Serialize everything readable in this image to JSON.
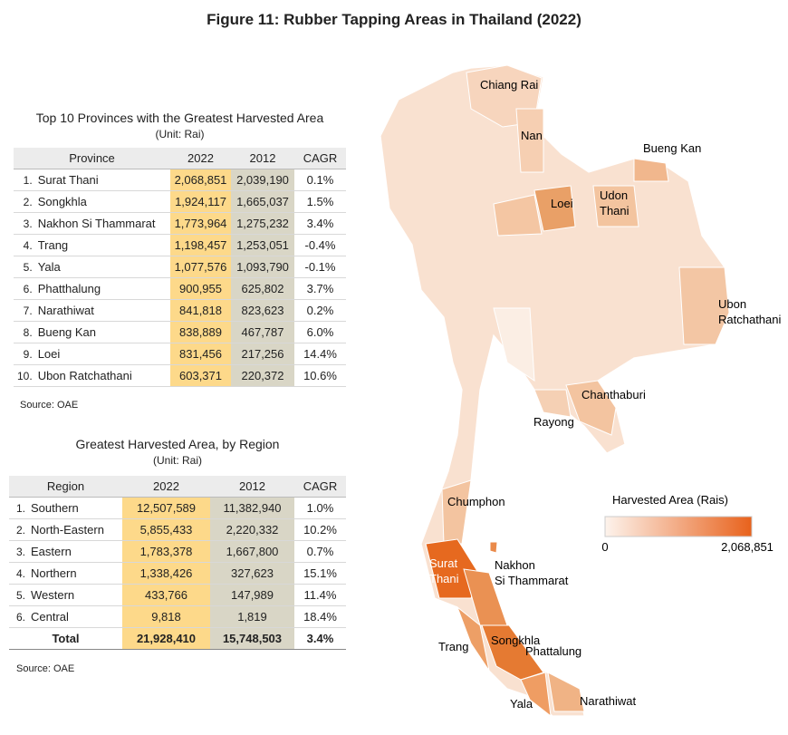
{
  "title": "Figure 11: Rubber Tapping Areas in Thailand (2022)",
  "province_table": {
    "title": "Top 10 Provinces with the Greatest Harvested Area",
    "unit": "(Unit: Rai)",
    "header": [
      "Province",
      "2022",
      "2012",
      "CAGR"
    ],
    "rows": [
      [
        "1.",
        "Surat Thani",
        "2,068,851",
        "2,039,190",
        "0.1%"
      ],
      [
        "2.",
        "Songkhla",
        "1,924,117",
        "1,665,037",
        "1.5%"
      ],
      [
        "3.",
        "Nakhon Si Thammarat",
        "1,773,964",
        "1,275,232",
        "3.4%"
      ],
      [
        "4.",
        "Trang",
        "1,198,457",
        "1,253,051",
        "-0.4%"
      ],
      [
        "5.",
        "Yala",
        "1,077,576",
        "1,093,790",
        "-0.1%"
      ],
      [
        "6.",
        "Phatthalung",
        "900,955",
        "625,802",
        "3.7%"
      ],
      [
        "7.",
        "Narathiwat",
        "841,818",
        "823,623",
        "0.2%"
      ],
      [
        "8.",
        "Bueng Kan",
        "838,889",
        "467,787",
        "6.0%"
      ],
      [
        "9.",
        "Loei",
        "831,456",
        "217,256",
        "14.4%"
      ],
      [
        "10.",
        "Ubon Ratchathani",
        "603,371",
        "220,372",
        "10.6%"
      ]
    ],
    "source": "Source: OAE"
  },
  "region_table": {
    "title": "Greatest Harvested Area, by Region",
    "unit": "(Unit: Rai)",
    "header": [
      "Region",
      "2022",
      "2012",
      "CAGR"
    ],
    "rows": [
      [
        "1.",
        "Southern",
        "12,507,589",
        "11,382,940",
        "1.0%"
      ],
      [
        "2.",
        "North-Eastern",
        "5,855,433",
        "2,220,332",
        "10.2%"
      ],
      [
        "3.",
        "Eastern",
        "1,783,378",
        "1,667,800",
        "0.7%"
      ],
      [
        "4.",
        "Northern",
        "1,338,426",
        "327,623",
        "15.1%"
      ],
      [
        "5.",
        "Western",
        "433,766",
        "147,989",
        "11.4%"
      ],
      [
        "6.",
        "Central",
        "9,818",
        "1,819",
        "18.4%"
      ]
    ],
    "total": [
      "Total",
      "21,928,410",
      "15,748,503",
      "3.4%"
    ],
    "source": "Source: OAE"
  },
  "map": {
    "labels": [
      [
        "Chiang Rai"
      ],
      [
        "Nan"
      ],
      [
        "Bueng Kan"
      ],
      [
        "Loei"
      ],
      [
        "Udon",
        "Thani"
      ],
      [
        "Ubon",
        "Ratchathani"
      ],
      [
        "Chanthaburi"
      ],
      [
        "Rayong"
      ],
      [
        "Chumphon"
      ],
      [
        "Surat",
        "Thani"
      ],
      [
        "Nakhon",
        "Si Thammarat"
      ],
      [
        "Trang"
      ],
      [
        "Songkhla"
      ],
      [
        "Phattalung"
      ],
      [
        "Yala"
      ],
      [
        "Narathiwat"
      ]
    ],
    "legend": {
      "title": "Harvested Area (Rais)",
      "min": "0",
      "max": "2,068,851"
    }
  }
}
